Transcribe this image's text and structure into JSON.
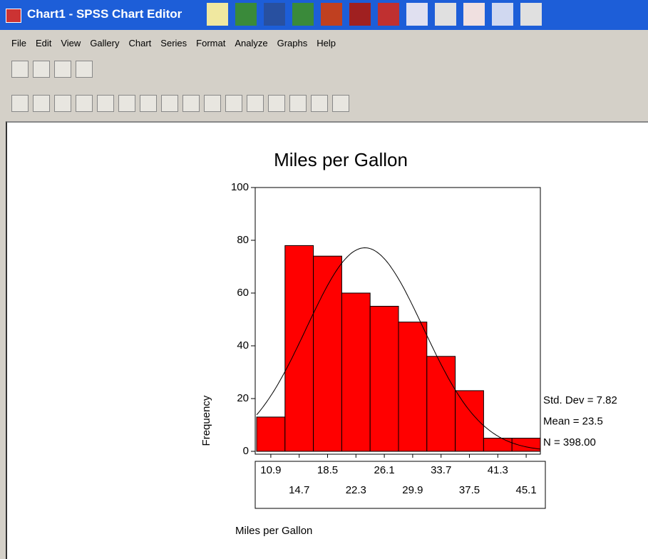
{
  "window": {
    "title": "Chart1 - SPSS Chart Editor",
    "menu": [
      "File",
      "Edit",
      "View",
      "Gallery",
      "Chart",
      "Series",
      "Format",
      "Analyze",
      "Graphs",
      "Help"
    ]
  },
  "chart_data": {
    "type": "histogram",
    "title": "Miles per Gallon",
    "x_label": "Miles per Gallon",
    "y_label": "Frequency",
    "bins": [
      9,
      12.8,
      16.6,
      20.4,
      24.2,
      28,
      31.8,
      35.6,
      39.4,
      43.2,
      47
    ],
    "values": [
      13,
      78,
      74,
      60,
      55,
      49,
      36,
      23,
      5,
      5
    ],
    "color": "#ff0000",
    "xlim": [
      9,
      47
    ],
    "xticks": [
      10.9,
      14.7,
      18.5,
      22.3,
      26.1,
      29.9,
      33.7,
      37.5,
      41.3,
      45.1
    ],
    "ylim": [
      0,
      100
    ],
    "yticks": [
      0,
      20,
      40,
      60,
      80,
      100
    ],
    "curve": {
      "mean": 23.5,
      "std_dev": 7.82,
      "n": 398
    },
    "annotations": [
      "Std. Dev = 7.82",
      "Mean = 23.5",
      "N = 398.00"
    ]
  }
}
